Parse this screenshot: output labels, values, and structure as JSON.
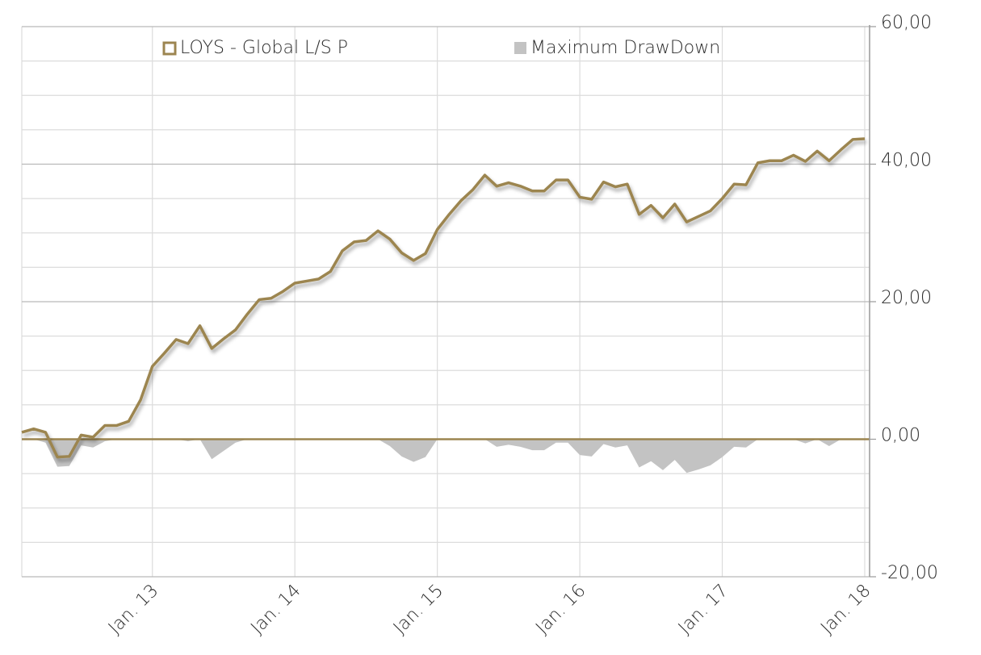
{
  "chart_data": {
    "type": "line",
    "categories": [
      null,
      null,
      null,
      null,
      null,
      null,
      null,
      null,
      null,
      null,
      null,
      "Jan. 13",
      null,
      null,
      null,
      null,
      null,
      null,
      null,
      null,
      null,
      null,
      null,
      "Jan. 14",
      null,
      null,
      null,
      null,
      null,
      null,
      null,
      null,
      null,
      null,
      null,
      "Jan. 15",
      null,
      null,
      null,
      null,
      null,
      null,
      null,
      null,
      null,
      null,
      null,
      "Jan. 16",
      null,
      null,
      null,
      null,
      null,
      null,
      null,
      null,
      null,
      null,
      null,
      "Jan. 17",
      null,
      null,
      null,
      null,
      null,
      null,
      null,
      null,
      null,
      null,
      null,
      "Jan. 18"
    ],
    "series": [
      {
        "name": "LOYS - Global L/S P",
        "type": "line",
        "color": "#9c8550",
        "values": [
          1.0,
          1.5,
          1.0,
          -2.6,
          -2.5,
          0.6,
          0.3,
          2.0,
          2.0,
          2.6,
          5.7,
          10.6,
          12.5,
          14.5,
          13.9,
          16.5,
          13.2,
          14.6,
          15.9,
          18.2,
          20.3,
          20.5,
          21.5,
          22.7,
          23.0,
          23.3,
          24.4,
          27.4,
          28.7,
          28.9,
          30.3,
          29.1,
          27.1,
          26.0,
          27.0,
          30.5,
          32.7,
          34.7,
          36.3,
          38.4,
          36.8,
          37.3,
          36.8,
          36.1,
          36.1,
          37.7,
          37.7,
          35.2,
          34.9,
          37.4,
          36.7,
          37.1,
          32.7,
          34.0,
          32.2,
          34.2,
          31.6,
          32.4,
          33.2,
          35.0,
          37.1,
          37.0,
          40.2,
          40.5,
          40.5,
          41.3,
          40.4,
          41.9,
          40.5,
          42.1,
          43.6,
          43.7
        ]
      },
      {
        "name": "Maximum DrawDown",
        "type": "area",
        "color": "#c3c3c3",
        "values": [
          0,
          0,
          -0.5,
          -4.0,
          -3.9,
          -0.9,
          -1.2,
          -0.3,
          0,
          0,
          0,
          0,
          0,
          0,
          -0.3,
          0,
          -2.9,
          -1.7,
          -0.5,
          0,
          0,
          0,
          0,
          0,
          0,
          0,
          0,
          0,
          0,
          0,
          0,
          -1.0,
          -2.5,
          -3.3,
          -2.6,
          0,
          0,
          0,
          0,
          0,
          -1.1,
          -0.8,
          -1.1,
          -1.6,
          -1.6,
          -0.5,
          -0.5,
          -2.3,
          -2.5,
          -0.7,
          -1.2,
          -0.9,
          -4.1,
          -3.2,
          -4.5,
          -3.0,
          -4.9,
          -4.4,
          -3.8,
          -2.6,
          -1.1,
          -1.2,
          0,
          0,
          0,
          0,
          -0.6,
          0,
          -1.0,
          0,
          0,
          0
        ]
      }
    ],
    "ylim": [
      -20,
      60
    ],
    "yticks": [
      {
        "value": -20,
        "label": "-20,00"
      },
      {
        "value": 0,
        "label": "0,00"
      },
      {
        "value": 20,
        "label": "20,00"
      },
      {
        "value": 40,
        "label": "40,00"
      },
      {
        "value": 60,
        "label": "60,00"
      }
    ],
    "yminor_grid": [
      -15,
      -10,
      -5,
      5,
      10,
      15,
      25,
      30,
      35,
      45,
      50,
      55
    ],
    "grid": true,
    "legend": "top"
  }
}
